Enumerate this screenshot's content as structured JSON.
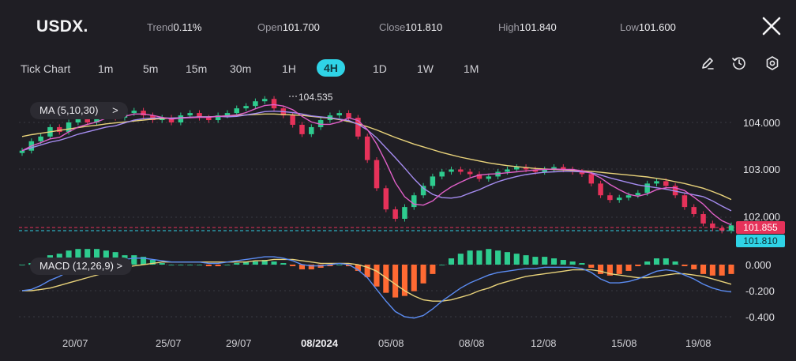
{
  "header": {
    "symbol": "USDX.",
    "stats": [
      {
        "label": "Trend",
        "value": "0.11%"
      },
      {
        "label": "Open",
        "value": "101.700"
      },
      {
        "label": "Close",
        "value": "101.810"
      },
      {
        "label": "High",
        "value": "101.840"
      },
      {
        "label": "Low",
        "value": "101.600"
      }
    ]
  },
  "timeframes": {
    "tick_chart": "Tick Chart",
    "items": [
      "1m",
      "5m",
      "15m",
      "30m",
      "1H",
      "4H",
      "1D",
      "1W",
      "1M"
    ],
    "active": "4H"
  },
  "tools": [
    "pencil-icon",
    "clock-rewind-icon",
    "settings-icon"
  ],
  "indicators": {
    "ma_label": "MA (5,10,30)",
    "ma_chevron": ">",
    "macd_label": "MACD (12,26,9)",
    "macd_chevron": ">"
  },
  "price_axis": {
    "ticks": [
      "104.000",
      "103.000",
      "102.000"
    ],
    "high_marker": "104.535",
    "current_price": "101.855",
    "close_price": "101.810"
  },
  "macd_axis": {
    "ticks": [
      "0.000",
      "-0.200",
      "-0.400"
    ]
  },
  "date_axis": [
    {
      "label": "20/07",
      "bold": false
    },
    {
      "label": "25/07",
      "bold": false
    },
    {
      "label": "29/07",
      "bold": false
    },
    {
      "label": "08/2024",
      "bold": true
    },
    {
      "label": "05/08",
      "bold": false
    },
    {
      "label": "08/08",
      "bold": false
    },
    {
      "label": "12/08",
      "bold": false
    },
    {
      "label": "15/08",
      "bold": false
    },
    {
      "label": "19/08",
      "bold": false
    }
  ],
  "colors": {
    "background": "#1f1e24",
    "up_candle": "#2ecc8f",
    "down_candle": "#e6325a",
    "active_tab": "#2fd3e6",
    "ma5": "#e060c8",
    "ma10": "#a58cf0",
    "ma30": "#e8d27a",
    "macd_line": "#5b8cf2",
    "signal_line": "#e8d27a",
    "hist_positive": "#2ecc8f",
    "hist_negative": "#ff6a33",
    "current_price_tag": "#e6325a",
    "close_price_tag": "#2fd3e6"
  },
  "chart_data": {
    "type": "candlestick",
    "price_range": [
      101.5,
      104.8
    ],
    "macd_range": [
      -0.45,
      0.1
    ],
    "closes": [
      103.4,
      103.6,
      103.7,
      103.9,
      103.8,
      104.0,
      104.1,
      104.0,
      104.15,
      104.2,
      104.1,
      104.2,
      104.25,
      104.15,
      104.05,
      104.1,
      104.0,
      104.15,
      104.2,
      104.1,
      104.05,
      104.15,
      104.2,
      104.3,
      104.35,
      104.45,
      104.5,
      104.3,
      104.15,
      103.95,
      103.75,
      103.9,
      104.05,
      104.15,
      104.2,
      104.1,
      103.7,
      103.2,
      102.6,
      102.15,
      101.95,
      102.2,
      102.45,
      102.65,
      102.85,
      102.95,
      103.0,
      102.95,
      102.9,
      102.8,
      102.85,
      102.95,
      103.0,
      103.05,
      103.0,
      102.95,
      103.0,
      103.05,
      103.0,
      102.95,
      102.9,
      102.7,
      102.45,
      102.35,
      102.4,
      102.45,
      102.5,
      102.7,
      102.75,
      102.65,
      102.45,
      102.2,
      102.05,
      101.85,
      101.75,
      101.7,
      101.81
    ],
    "ma5": [
      103.4,
      103.5,
      103.57,
      103.65,
      103.68,
      103.8,
      103.9,
      103.96,
      104.01,
      104.09,
      104.11,
      104.13,
      104.18,
      104.18,
      104.15,
      104.11,
      104.07,
      104.09,
      104.1,
      104.11,
      104.11,
      104.13,
      104.14,
      104.16,
      104.21,
      104.29,
      104.36,
      104.38,
      104.35,
      104.27,
      104.13,
      104.01,
      103.96,
      103.96,
      104.01,
      104.1,
      104.04,
      103.85,
      103.54,
      103.15,
      102.72,
      102.42,
      102.26,
      102.24,
      102.33,
      102.5,
      102.63,
      102.73,
      102.82,
      102.88,
      102.9,
      102.91,
      102.93,
      102.95,
      102.97,
      102.99,
      103.0,
      103.01,
      103.0,
      103.0,
      102.97,
      102.92,
      102.82,
      102.68,
      102.57,
      102.47,
      102.43,
      102.48,
      102.57,
      102.61,
      102.61,
      102.55,
      102.41,
      102.26,
      102.06,
      101.91,
      101.82
    ],
    "ma10": [
      103.4,
      103.46,
      103.52,
      103.58,
      103.62,
      103.68,
      103.75,
      103.8,
      103.85,
      103.9,
      103.93,
      103.99,
      104.05,
      104.08,
      104.09,
      104.1,
      104.09,
      104.1,
      104.11,
      104.12,
      104.12,
      104.13,
      104.12,
      104.13,
      104.16,
      104.19,
      104.23,
      104.24,
      104.23,
      104.21,
      104.18,
      104.14,
      104.12,
      104.1,
      104.07,
      104.04,
      103.96,
      103.84,
      103.67,
      103.46,
      103.25,
      103.03,
      102.8,
      102.6,
      102.47,
      102.4,
      102.39,
      102.42,
      102.5,
      102.57,
      102.66,
      102.74,
      102.8,
      102.85,
      102.89,
      102.92,
      102.94,
      102.95,
      102.96,
      102.96,
      102.95,
      102.93,
      102.88,
      102.82,
      102.77,
      102.72,
      102.67,
      102.64,
      102.61,
      102.58,
      102.54,
      102.5,
      102.46,
      102.42,
      102.33,
      102.22,
      102.12
    ],
    "ma30": [
      103.7,
      103.74,
      103.77,
      103.8,
      103.83,
      103.86,
      103.89,
      103.92,
      103.94,
      103.97,
      103.99,
      104.01,
      104.03,
      104.05,
      104.07,
      104.08,
      104.09,
      104.1,
      104.11,
      104.12,
      104.12,
      104.13,
      104.14,
      104.15,
      104.16,
      104.17,
      104.18,
      104.18,
      104.17,
      104.16,
      104.15,
      104.13,
      104.11,
      104.09,
      104.06,
      104.02,
      103.97,
      103.91,
      103.84,
      103.76,
      103.68,
      103.61,
      103.54,
      103.48,
      103.42,
      103.36,
      103.31,
      103.26,
      103.22,
      103.18,
      103.14,
      103.11,
      103.08,
      103.06,
      103.04,
      103.02,
      103.01,
      103.0,
      102.99,
      102.98,
      102.97,
      102.96,
      102.94,
      102.92,
      102.9,
      102.88,
      102.86,
      102.84,
      102.81,
      102.78,
      102.74,
      102.7,
      102.65,
      102.6,
      102.53,
      102.45,
      102.36
    ],
    "macd": [
      -0.2,
      -0.19,
      -0.16,
      -0.12,
      -0.09,
      -0.05,
      -0.02,
      0.0,
      0.02,
      0.03,
      0.04,
      0.04,
      0.05,
      0.05,
      0.04,
      0.03,
      0.02,
      0.02,
      0.02,
      0.02,
      0.01,
      0.01,
      0.02,
      0.03,
      0.04,
      0.05,
      0.06,
      0.06,
      0.05,
      0.03,
      0.0,
      -0.01,
      -0.01,
      0.0,
      0.01,
      0.0,
      -0.04,
      -0.1,
      -0.19,
      -0.28,
      -0.36,
      -0.4,
      -0.41,
      -0.39,
      -0.34,
      -0.28,
      -0.23,
      -0.18,
      -0.14,
      -0.11,
      -0.08,
      -0.06,
      -0.05,
      -0.04,
      -0.03,
      -0.03,
      -0.02,
      -0.02,
      -0.02,
      -0.02,
      -0.03,
      -0.06,
      -0.11,
      -0.14,
      -0.14,
      -0.13,
      -0.11,
      -0.08,
      -0.05,
      -0.04,
      -0.05,
      -0.08,
      -0.11,
      -0.15,
      -0.18,
      -0.2,
      -0.21
    ],
    "signal": [
      -0.2,
      -0.2,
      -0.19,
      -0.18,
      -0.16,
      -0.14,
      -0.12,
      -0.1,
      -0.08,
      -0.06,
      -0.04,
      -0.02,
      -0.01,
      0.0,
      0.01,
      0.02,
      0.02,
      0.02,
      0.02,
      0.02,
      0.02,
      0.02,
      0.02,
      0.02,
      0.02,
      0.03,
      0.03,
      0.04,
      0.04,
      0.04,
      0.03,
      0.02,
      0.01,
      0.01,
      0.01,
      0.01,
      0.0,
      -0.02,
      -0.05,
      -0.1,
      -0.15,
      -0.2,
      -0.24,
      -0.27,
      -0.28,
      -0.28,
      -0.27,
      -0.25,
      -0.23,
      -0.2,
      -0.18,
      -0.15,
      -0.13,
      -0.11,
      -0.09,
      -0.08,
      -0.07,
      -0.06,
      -0.05,
      -0.04,
      -0.04,
      -0.04,
      -0.05,
      -0.07,
      -0.08,
      -0.09,
      -0.1,
      -0.1,
      -0.09,
      -0.08,
      -0.07,
      -0.07,
      -0.08,
      -0.09,
      -0.11,
      -0.13,
      -0.15
    ]
  }
}
